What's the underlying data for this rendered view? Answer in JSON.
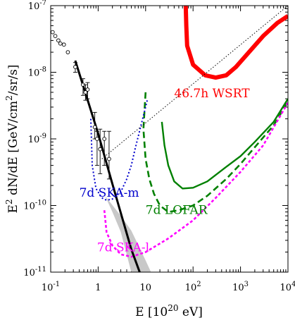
{
  "chart_data": {
    "type": "line",
    "xlabel": {
      "pre": "E [10",
      "sup": "20",
      "post": " eV]"
    },
    "ylabel": {
      "pre": "E",
      "sup1": "2",
      "mid": " dN/dE [GeV/cm",
      "sup2": "2",
      "post": "/sr/s]"
    },
    "x_scale": "log",
    "y_scale": "log",
    "xlim": [
      0.1,
      10000
    ],
    "ylim": [
      1e-11,
      1e-07
    ],
    "x_ticks": [
      {
        "value": 0.1,
        "base": "10",
        "exp": "-1"
      },
      {
        "value": 1,
        "base": "1",
        "exp": ""
      },
      {
        "value": 10,
        "base": "10",
        "exp": ""
      },
      {
        "value": 100,
        "base": "10",
        "exp": "2"
      },
      {
        "value": 1000,
        "base": "10",
        "exp": "3"
      },
      {
        "value": 10000,
        "base": "10",
        "exp": "4"
      }
    ],
    "y_ticks": [
      {
        "value": 1e-11,
        "base": "10",
        "exp": "-11"
      },
      {
        "value": 1e-10,
        "base": "10",
        "exp": "-10"
      },
      {
        "value": 1e-09,
        "base": "10",
        "exp": "-9"
      },
      {
        "value": 1e-08,
        "base": "10",
        "exp": "-8"
      },
      {
        "value": 1e-07,
        "base": "10",
        "exp": "-7"
      }
    ],
    "colors": {
      "wsrt": "#ff0000",
      "lofar": "#008000",
      "ska_m": "#0000cc",
      "ska_l": "#ff00ff",
      "fit": "#000000",
      "band": "#c8c8c8",
      "data": "#000000"
    },
    "annotations": [
      {
        "id": "wsrt",
        "text": "46.7h WSRT",
        "x": 40,
        "y": 4.2e-09,
        "color": "#ff0000"
      },
      {
        "id": "lofar",
        "text": "7d LOFAR",
        "x": 10,
        "y": 7.5e-11,
        "color": "#008000"
      },
      {
        "id": "ska_m",
        "text": "7d SKA-m",
        "x": 0.4,
        "y": 1.35e-10,
        "color": "#0000cc"
      },
      {
        "id": "ska_l",
        "text": "7d SKA-l",
        "x": 0.95,
        "y": 2.05e-11,
        "color": "#ff00ff"
      }
    ],
    "series": [
      {
        "id": "wsrt",
        "style": "solid-thick",
        "points": [
          [
            70,
            1e-07
          ],
          [
            72,
            5e-08
          ],
          [
            75,
            2.5e-08
          ],
          [
            100,
            1.3e-08
          ],
          [
            180,
            9e-09
          ],
          [
            300,
            8.3e-09
          ],
          [
            500,
            9e-09
          ],
          [
            800,
            1.2e-08
          ],
          [
            1500,
            2e-08
          ],
          [
            3000,
            3.5e-08
          ],
          [
            6000,
            5.5e-08
          ],
          [
            10000,
            7e-08
          ]
        ]
      },
      {
        "id": "lofar_dashed",
        "style": "dashed",
        "points": [
          [
            10,
            5e-09
          ],
          [
            9,
            1.4e-09
          ],
          [
            10,
            5e-10
          ],
          [
            12,
            2.5e-10
          ],
          [
            15,
            1.5e-10
          ],
          [
            20,
            1e-10
          ],
          [
            30,
            8e-11
          ],
          [
            50,
            8.5e-11
          ],
          [
            100,
            1e-10
          ],
          [
            200,
            1.4e-10
          ],
          [
            500,
            2.5e-10
          ],
          [
            1000,
            4.2e-10
          ],
          [
            2000,
            7.5e-10
          ],
          [
            5000,
            1.6e-09
          ],
          [
            10000,
            3.6e-09
          ]
        ]
      },
      {
        "id": "lofar_solid",
        "style": "solid",
        "points": [
          [
            22,
            1.8e-09
          ],
          [
            25,
            8e-10
          ],
          [
            30,
            4e-10
          ],
          [
            40,
            2.3e-10
          ],
          [
            60,
            1.8e-10
          ],
          [
            100,
            1.85e-10
          ],
          [
            200,
            2.3e-10
          ],
          [
            500,
            3.8e-10
          ],
          [
            1000,
            5.5e-10
          ],
          [
            2000,
            9e-10
          ],
          [
            5000,
            1.8e-09
          ],
          [
            10000,
            4e-09
          ]
        ]
      },
      {
        "id": "ska_m",
        "style": "dotted",
        "points": [
          [
            0.7,
            2e-09
          ],
          [
            0.75,
            4e-10
          ],
          [
            0.9,
            1.8e-10
          ],
          [
            1.2,
            1.3e-10
          ],
          [
            1.5,
            1.2e-10
          ],
          [
            2,
            1.25e-10
          ],
          [
            3,
            1.6e-10
          ],
          [
            4,
            2.5e-10
          ],
          [
            5,
            4e-10
          ],
          [
            6,
            7e-10
          ],
          [
            8,
            1.6e-09
          ],
          [
            10,
            3e-09
          ],
          [
            11,
            4e-09
          ]
        ]
      },
      {
        "id": "ska_l",
        "style": "dashed-fine",
        "points": [
          [
            1.35,
            8.5e-11
          ],
          [
            1.5,
            4e-11
          ],
          [
            2,
            2.5e-11
          ],
          [
            3,
            1.85e-11
          ],
          [
            5,
            1.7e-11
          ],
          [
            10,
            2e-11
          ],
          [
            30,
            3.2e-11
          ],
          [
            100,
            6e-11
          ],
          [
            300,
            1.3e-10
          ],
          [
            1000,
            3.2e-10
          ],
          [
            3000,
            8e-10
          ],
          [
            10000,
            3.5e-09
          ]
        ]
      },
      {
        "id": "guide",
        "style": "dotted-fine",
        "points": [
          [
            1.2,
            5e-10
          ],
          [
            10000,
            1e-07
          ]
        ]
      },
      {
        "id": "fit",
        "style": "solid-thick",
        "points": [
          [
            0.33,
            1.5e-08
          ],
          [
            1,
            1.2e-09
          ],
          [
            2,
            2.1e-10
          ],
          [
            5,
            2.2e-11
          ],
          [
            7.5,
            1e-11
          ]
        ]
      }
    ],
    "band": {
      "upper": [
        [
          1.4,
          1.4e-10
        ],
        [
          3,
          7e-11
        ],
        [
          5,
          4.2e-11
        ],
        [
          10,
          1.5e-11
        ],
        [
          13,
          1e-11
        ]
      ],
      "lower": [
        [
          1.4,
          1.4e-10
        ],
        [
          2,
          8e-11
        ],
        [
          3,
          4e-11
        ],
        [
          5,
          1e-11
        ]
      ]
    },
    "data_points": [
      {
        "x": 0.11,
        "y": 4e-08
      },
      {
        "x": 0.125,
        "y": 3.5e-08
      },
      {
        "x": 0.145,
        "y": 3e-08
      },
      {
        "x": 0.16,
        "y": 2.7e-08
      },
      {
        "x": 0.19,
        "y": 2.6e-08
      },
      {
        "x": 0.23,
        "y": 2e-08
      },
      {
        "x": 0.33,
        "y": 1.2e-08,
        "yerr": [
          1e-08,
          1.4e-08
        ]
      },
      {
        "x": 0.48,
        "y": 6.5e-09,
        "yerr": [
          4.5e-09,
          8e-09
        ]
      },
      {
        "x": 0.54,
        "y": 5e-09,
        "yerr": [
          3.8e-09,
          6.5e-09
        ]
      },
      {
        "x": 0.6,
        "y": 5.5e-09,
        "yerr": [
          4e-09,
          7e-09
        ]
      },
      {
        "x": 0.85,
        "y": 1.5e-09,
        "yerr": [
          1e-09,
          2.5e-09
        ]
      },
      {
        "x": 0.95,
        "y": 1e-09,
        "yerr": [
          4e-10,
          1.3e-09
        ]
      },
      {
        "x": 1.1,
        "y": 7e-10,
        "yerr": [
          3e-10,
          1.4e-09
        ]
      },
      {
        "x": 1.35,
        "y": 1e-09,
        "yerr": [
          4e-10,
          1.3e-09
        ]
      },
      {
        "x": 1.7,
        "y": 5e-10,
        "yerr": [
          2.5e-10,
          1.3e-09
        ]
      }
    ]
  }
}
